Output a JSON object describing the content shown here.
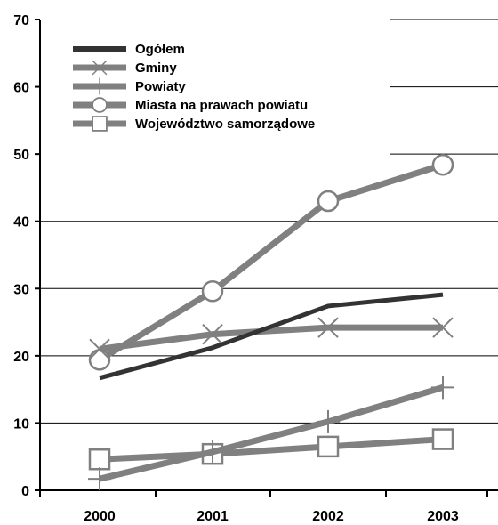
{
  "chart_data": {
    "type": "line",
    "title": "",
    "xlabel": "",
    "ylabel": "",
    "categories": [
      "2000",
      "2001",
      "2002",
      "2003"
    ],
    "ylim": [
      0,
      70
    ],
    "yticks": [
      "0",
      "10",
      "20",
      "30",
      "40",
      "50",
      "60",
      "70"
    ],
    "grid": true,
    "legend_position": "top-left",
    "series": [
      {
        "name": "Ogółem",
        "values": [
          16.7,
          21.2,
          27.4,
          29.1
        ],
        "color": "#333333",
        "marker": "none"
      },
      {
        "name": "Gminy",
        "values": [
          21.0,
          23.2,
          24.2,
          24.2
        ],
        "color": "#808080",
        "marker": "x"
      },
      {
        "name": "Powiaty",
        "values": [
          1.7,
          5.7,
          10.2,
          15.3
        ],
        "color": "#808080",
        "marker": "plus"
      },
      {
        "name": "Miasta na prawach powiatu",
        "values": [
          19.4,
          29.6,
          43.0,
          48.4
        ],
        "color": "#808080",
        "marker": "circle"
      },
      {
        "name": "Województwo samorządowe",
        "values": [
          4.6,
          5.4,
          6.5,
          7.6
        ],
        "color": "#808080",
        "marker": "square"
      }
    ]
  }
}
